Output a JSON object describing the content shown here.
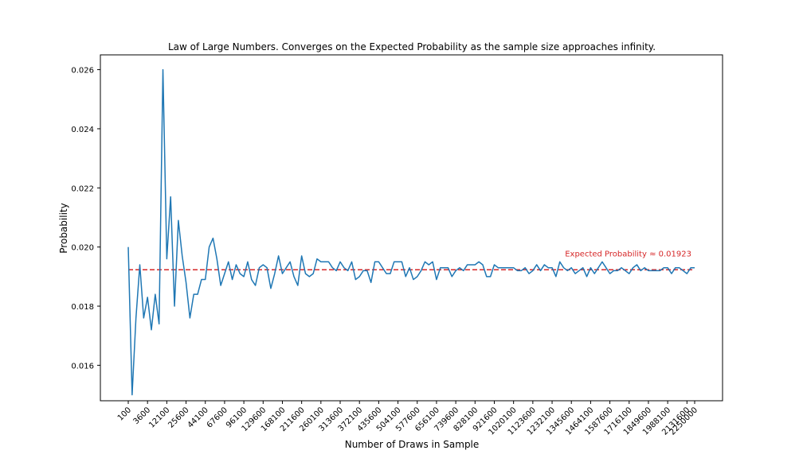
{
  "chart_data": {
    "type": "line",
    "title": "Law of Large Numbers.  Converges on the Expected Probability as the sample size approaches infinity.",
    "xlabel": "Number of Draws in Sample",
    "ylabel": "Probability",
    "ylim": [
      0.0148,
      0.0265
    ],
    "y_ticks": [
      0.016,
      0.018,
      0.02,
      0.022,
      0.024,
      0.026
    ],
    "y_tick_labels": [
      "0.016",
      "0.018",
      "0.020",
      "0.022",
      "0.024",
      "0.026"
    ],
    "x_tick_labels": [
      "100",
      "3600",
      "12100",
      "25600",
      "44100",
      "67600",
      "96100",
      "129600",
      "168100",
      "211600",
      "260100",
      "313600",
      "372100",
      "435600",
      "504100",
      "577600",
      "656100",
      "739600",
      "828100",
      "921600",
      "1020100",
      "1123600",
      "1232100",
      "1345600",
      "1464100",
      "1587600",
      "1716100",
      "1849600",
      "1988100",
      "2131600",
      "2250000"
    ],
    "x_tick_every": 5,
    "grid": false,
    "series": [
      {
        "color": "#1f77b4",
        "values": [
          0.02,
          0.015,
          0.0176,
          0.0194,
          0.0176,
          0.0183,
          0.0172,
          0.0184,
          0.0174,
          0.026,
          0.0196,
          0.0217,
          0.018,
          0.0209,
          0.0197,
          0.0188,
          0.0176,
          0.0184,
          0.0184,
          0.0189,
          0.0189,
          0.02,
          0.0203,
          0.0196,
          0.0187,
          0.0191,
          0.0195,
          0.0189,
          0.0194,
          0.0191,
          0.019,
          0.0195,
          0.0189,
          0.0187,
          0.0193,
          0.0194,
          0.0193,
          0.0186,
          0.0191,
          0.0197,
          0.0191,
          0.0193,
          0.0195,
          0.019,
          0.0187,
          0.0197,
          0.0191,
          0.019,
          0.0191,
          0.0196,
          0.0195,
          0.0195,
          0.0195,
          0.0193,
          0.0192,
          0.0195,
          0.0193,
          0.0192,
          0.0195,
          0.0189,
          0.019,
          0.0192,
          0.0192,
          0.0188,
          0.0195,
          0.0195,
          0.0193,
          0.0191,
          0.0191,
          0.0195,
          0.0195,
          0.0195,
          0.019,
          0.0193,
          0.0189,
          0.019,
          0.0192,
          0.0195,
          0.0194,
          0.0195,
          0.0189,
          0.0193,
          0.0193,
          0.0193,
          0.019,
          0.0192,
          0.0193,
          0.0192,
          0.0194,
          0.0194,
          0.0194,
          0.0195,
          0.0194,
          0.019,
          0.019,
          0.0194,
          0.0193,
          0.0193,
          0.0193,
          0.0193,
          0.0193,
          0.0192,
          0.0192,
          0.0193,
          0.0191,
          0.0192,
          0.0194,
          0.0192,
          0.0194,
          0.0193,
          0.0193,
          0.019,
          0.0195,
          0.0193,
          0.0192,
          0.0193,
          0.0191,
          0.0192,
          0.0193,
          0.019,
          0.0193,
          0.0191,
          0.0193,
          0.0195,
          0.0193,
          0.0191,
          0.0192,
          0.0192,
          0.0193,
          0.0192,
          0.0191,
          0.0193,
          0.0194,
          0.0192,
          0.0193,
          0.0192,
          0.0192,
          0.0192,
          0.0192,
          0.0193,
          0.0193,
          0.0191,
          0.0193,
          0.0193,
          0.0192,
          0.0191,
          0.0193,
          0.0193
        ]
      }
    ],
    "reference_line": {
      "value": 0.01923,
      "color": "#d62728",
      "style": "dashed",
      "label": "Expected Probability ≈ 0.01923"
    }
  }
}
